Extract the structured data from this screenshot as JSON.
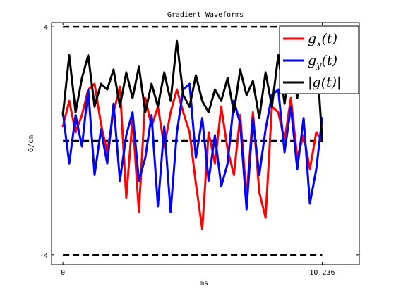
{
  "chart_data": {
    "type": "line",
    "title": "Gradient Waveforms",
    "xlabel": "ms",
    "ylabel": "G/cm",
    "xlim": [
      -0.45,
      11.7
    ],
    "ylim": [
      -4.35,
      4.15
    ],
    "xticks": [
      {
        "value": 0,
        "label": "0"
      },
      {
        "value": 10.236,
        "label": "10.236"
      }
    ],
    "yticks": [
      {
        "value": 4,
        "label": "4"
      },
      {
        "value": -4,
        "label": "-4"
      }
    ],
    "grid": false,
    "legend_position": "top-right",
    "reference_lines": [
      {
        "y": 4,
        "style": "dashed",
        "color": "#000000"
      },
      {
        "y": 0,
        "style": "dashed",
        "color": "#000000"
      },
      {
        "y": -4,
        "style": "dashed",
        "color": "#000000"
      }
    ],
    "x": [
      0.0,
      0.25,
      0.5,
      0.75,
      1.0,
      1.25,
      1.5,
      1.75,
      2.0,
      2.25,
      2.5,
      2.75,
      3.0,
      3.25,
      3.5,
      3.75,
      4.0,
      4.25,
      4.5,
      4.75,
      5.0,
      5.25,
      5.5,
      5.75,
      6.0,
      6.25,
      6.5,
      6.75,
      7.0,
      7.25,
      7.5,
      7.75,
      8.0,
      8.25,
      8.5,
      8.75,
      9.0,
      9.25,
      9.5,
      9.75,
      10.0,
      10.236
    ],
    "series": [
      {
        "name": "g_x(t)",
        "legend_label": "g",
        "legend_sub": "x",
        "legend_suffix": "(t)",
        "color": "#ff0000",
        "values": [
          0.5,
          1.4,
          0.3,
          0.9,
          1.8,
          2.0,
          0.6,
          -0.4,
          1.0,
          1.9,
          -2.0,
          0.8,
          -2.5,
          1.5,
          0.5,
          1.2,
          -0.2,
          1.0,
          1.8,
          1.0,
          0.3,
          -1.5,
          -3.1,
          0.3,
          -0.8,
          1.2,
          -0.3,
          -1.2,
          0.9,
          -2.0,
          1.0,
          -1.8,
          -2.7,
          1.2,
          1.0,
          0.0,
          1.5,
          -0.6,
          0.2,
          -1.0,
          0.3,
          0.0
        ]
      },
      {
        "name": "g_y(t)",
        "legend_label": "g",
        "legend_sub": "y",
        "legend_suffix": "(t)",
        "color": "#0000ff",
        "values": [
          1.0,
          -0.8,
          0.9,
          -0.2,
          1.8,
          -1.2,
          0.4,
          -0.8,
          1.3,
          -1.4,
          0.2,
          1.0,
          -1.4,
          -0.6,
          0.9,
          -2.3,
          0.5,
          -2.5,
          0.3,
          1.8,
          2.0,
          -0.6,
          0.8,
          -1.4,
          0.2,
          -1.6,
          -0.8,
          1.4,
          0.6,
          -2.4,
          0.8,
          -1.2,
          0.4,
          1.6,
          1.8,
          -0.4,
          1.2,
          -1.0,
          0.8,
          -2.2,
          -1.0,
          0.8
        ]
      },
      {
        "name": "|g(t)|",
        "legend_label": "|g(t)|",
        "legend_sub": "",
        "legend_suffix": "",
        "color": "#000000",
        "values": [
          0.9,
          3.0,
          1.0,
          2.2,
          3.0,
          1.2,
          2.0,
          1.8,
          2.5,
          1.2,
          2.4,
          1.5,
          2.6,
          1.0,
          2.0,
          1.2,
          2.4,
          1.4,
          3.5,
          1.6,
          1.2,
          2.3,
          1.4,
          1.0,
          1.8,
          1.4,
          2.2,
          1.0,
          2.5,
          1.6,
          2.1,
          0.8,
          2.4,
          1.2,
          3.0,
          1.3,
          2.8,
          1.5,
          3.0,
          2.2,
          3.2,
          0.0
        ]
      }
    ]
  }
}
